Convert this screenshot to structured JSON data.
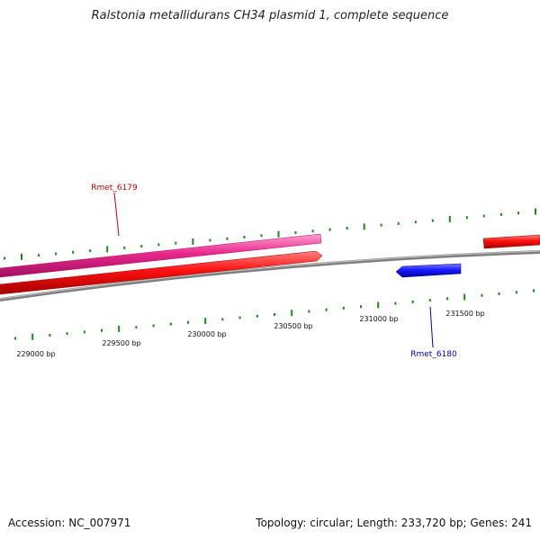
{
  "title": "Ralstonia metallidurans CH34 plasmid 1, complete sequence",
  "footer": {
    "accession": "Accession: NC_007971",
    "stats": "Topology: circular; Length: 233,720 bp; Genes: 241"
  },
  "genes": [
    {
      "name": "Rmet_6179",
      "color": "#cc0000"
    },
    {
      "name": "Rmet_6180",
      "color": "#0000cc"
    }
  ],
  "scale_labels": [
    "229000 bp",
    "229500 bp",
    "230000 bp",
    "230500 bp",
    "231000 bp",
    "231500 bp"
  ],
  "colors": {
    "backbone": "#808080",
    "forward_gene": "#ff1a1a",
    "reverse_gene": "#1a1aff",
    "highlight_gene": "#e8288c",
    "tick": "#1a8a1a"
  }
}
